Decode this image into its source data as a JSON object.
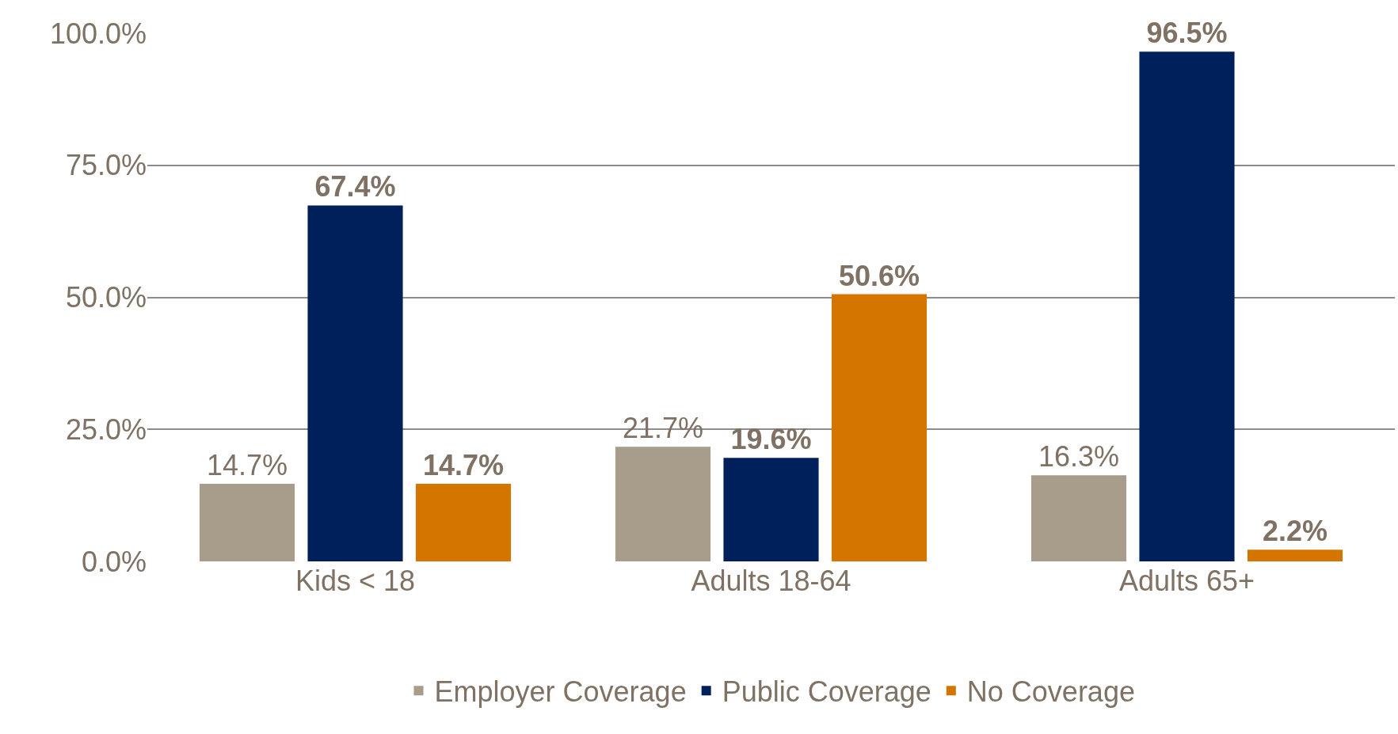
{
  "chart_data": {
    "type": "bar",
    "categories": [
      "Kids < 18",
      "Adults 18-64",
      "Adults 65+"
    ],
    "series": [
      {
        "name": "Employer Coverage",
        "color": "#a89c8b",
        "values": [
          14.7,
          21.7,
          16.3
        ],
        "value_labels": [
          "14.7%",
          "21.7%",
          "16.3%"
        ]
      },
      {
        "name": "Public Coverage",
        "color": "#00205b",
        "values": [
          67.4,
          19.6,
          96.5
        ],
        "value_labels": [
          "67.4%",
          "19.6%",
          "96.5%"
        ]
      },
      {
        "name": "No Coverage",
        "color": "#d47500",
        "values": [
          14.7,
          50.6,
          2.2
        ],
        "value_labels": [
          "14.7%",
          "50.6%",
          "2.2%"
        ]
      }
    ],
    "ylim": [
      0,
      100
    ],
    "yticks": [
      {
        "value": 0,
        "label": "0.0%"
      },
      {
        "value": 25,
        "label": "25.0%"
      },
      {
        "value": 50,
        "label": "50.0%"
      },
      {
        "value": 75,
        "label": "75.0%"
      },
      {
        "value": 100,
        "label": "100.0%"
      }
    ],
    "grid": "y",
    "legend": "bottom"
  }
}
